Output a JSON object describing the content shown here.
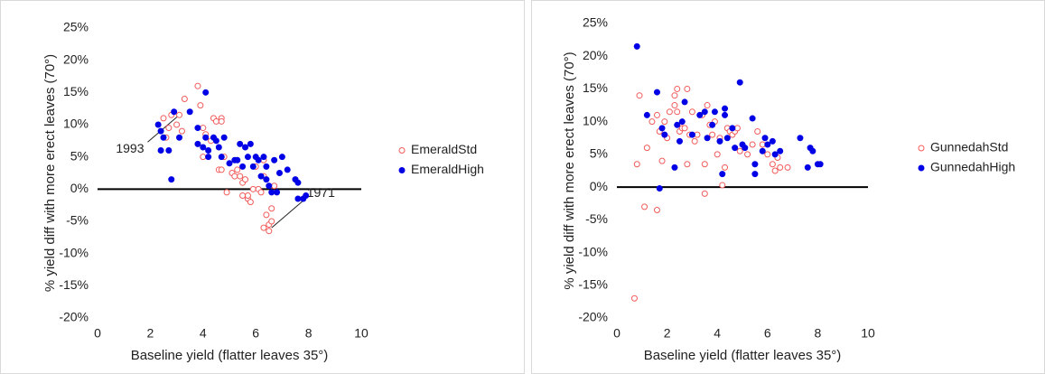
{
  "chart_data": [
    {
      "type": "scatter",
      "ylabel": "% yield diff with more erect leaves (70°)",
      "xlabel": "Baseline yield (flatter leaves 35°)",
      "xlim": [
        0,
        10
      ],
      "xticks": [
        0,
        2,
        4,
        6,
        8,
        10
      ],
      "ylim": [
        -20,
        25
      ],
      "yticks": [
        {
          "value": -20,
          "label": "-20%"
        },
        {
          "value": -15,
          "label": "-15%"
        },
        {
          "value": -10,
          "label": "-10%"
        },
        {
          "value": -5,
          "label": "-5%"
        },
        {
          "value": 0,
          "label": "0%"
        },
        {
          "value": 5,
          "label": "5%"
        },
        {
          "value": 10,
          "label": "10%"
        },
        {
          "value": 15,
          "label": "15%"
        },
        {
          "value": 20,
          "label": "20%"
        },
        {
          "value": 25,
          "label": "25%"
        }
      ],
      "legend": "right",
      "series": [
        {
          "name": "EmeraldStd",
          "color": "#f25b5b",
          "filled": false,
          "x": [
            2.5,
            2.6,
            2.7,
            2.8,
            3.0,
            3.2,
            3.3,
            3.1,
            3.8,
            3.9,
            4.0,
            4.1,
            4.0,
            4.3,
            4.4,
            4.5,
            4.7,
            4.7,
            4.6,
            4.7,
            4.8,
            4.9,
            5.1,
            5.2,
            5.3,
            5.4,
            5.5,
            5.5,
            5.6,
            5.7,
            5.8,
            5.7,
            5.9,
            6.1,
            6.2,
            6.3,
            6.0,
            6.3,
            6.4,
            6.5,
            6.6,
            6.5,
            6.6,
            6.7,
            6.3
          ],
          "values": [
            11,
            8,
            9.5,
            11.5,
            10,
            9,
            14,
            11.5,
            16,
            13,
            9.5,
            8.5,
            5,
            7.5,
            11,
            10.5,
            11,
            10.5,
            3,
            3,
            5,
            -0.5,
            2.5,
            2,
            3,
            2,
            1,
            -1,
            1.5,
            -1.5,
            -2,
            -1,
            0,
            0,
            -0.5,
            2,
            3.5,
            -6,
            -4,
            -5.5,
            -3,
            -6.5,
            -5,
            0.5,
            4.5
          ]
        },
        {
          "name": "EmeraldHigh",
          "color": "#0000e6",
          "filled": true,
          "x": [
            2.3,
            2.4,
            2.4,
            2.5,
            2.7,
            2.8,
            2.9,
            3.1,
            3.5,
            3.8,
            3.8,
            4.0,
            4.1,
            4.1,
            4.2,
            4.2,
            4.4,
            4.5,
            4.6,
            4.7,
            4.8,
            5.0,
            5.2,
            5.4,
            5.5,
            5.6,
            5.7,
            5.8,
            5.9,
            6.0,
            6.1,
            6.2,
            6.3,
            6.4,
            6.5,
            6.6,
            6.7,
            6.8,
            6.9,
            7.0,
            7.2,
            7.5,
            7.6,
            7.6,
            7.8,
            7.9,
            6.4,
            5.3
          ],
          "values": [
            10,
            9,
            6,
            8,
            6,
            1.5,
            12,
            8,
            12,
            9.5,
            7,
            6.5,
            15,
            8,
            6,
            5,
            8,
            7.5,
            6.5,
            5,
            8,
            4,
            4.5,
            7,
            3.5,
            6.5,
            5,
            7,
            3.5,
            5,
            4.5,
            2,
            5,
            3.5,
            0.5,
            -0.5,
            4.5,
            -0.5,
            2.5,
            5,
            3,
            1.5,
            1,
            -1.5,
            -1.5,
            -1,
            1.5,
            4.5
          ]
        }
      ],
      "annotations": [
        {
          "text": "1993",
          "x": 3.1,
          "y": 11.5
        },
        {
          "text": "1971",
          "x": 6.6,
          "y": -6
        }
      ]
    },
    {
      "type": "scatter",
      "ylabel": "% yield diff with more erect leaves (70°)",
      "xlabel": "Baseline yield (flatter leaves 35°)",
      "xlim": [
        0,
        10
      ],
      "xticks": [
        0,
        2,
        4,
        6,
        8,
        10
      ],
      "ylim": [
        -20,
        25
      ],
      "yticks": [
        {
          "value": -20,
          "label": "-20%"
        },
        {
          "value": -15,
          "label": "-15%"
        },
        {
          "value": -10,
          "label": "-10%"
        },
        {
          "value": -5,
          "label": "-5%"
        },
        {
          "value": 0,
          "label": "0%"
        },
        {
          "value": 5,
          "label": "5%"
        },
        {
          "value": 10,
          "label": "10%"
        },
        {
          "value": 15,
          "label": "15%"
        },
        {
          "value": 20,
          "label": "20%"
        },
        {
          "value": 25,
          "label": "25%"
        }
      ],
      "legend": "right",
      "series": [
        {
          "name": "GunnedahStd",
          "color": "#f25b5b",
          "filled": false,
          "x": [
            0.7,
            0.8,
            0.9,
            1.1,
            1.2,
            1.4,
            1.6,
            1.6,
            1.7,
            1.8,
            1.9,
            2.0,
            2.1,
            2.3,
            2.3,
            2.4,
            2.4,
            2.5,
            2.6,
            2.7,
            2.8,
            2.8,
            2.9,
            3.0,
            3.1,
            3.2,
            3.4,
            3.5,
            3.5,
            3.6,
            3.7,
            3.8,
            3.9,
            4.0,
            4.1,
            4.2,
            4.3,
            4.4,
            4.5,
            4.6,
            4.7,
            4.8,
            4.9,
            5.2,
            5.4,
            5.6,
            5.8,
            6.0,
            6.2,
            6.3,
            6.4,
            6.5,
            6.8
          ],
          "values": [
            -17,
            3.5,
            14,
            -3,
            6,
            10,
            -3.5,
            11,
            8.5,
            4,
            10,
            7.5,
            11.5,
            14,
            12.5,
            15,
            11.5,
            8.5,
            9,
            9,
            3.5,
            15,
            8,
            11.5,
            7,
            8,
            11,
            -1,
            3.5,
            12.5,
            9.5,
            8,
            10,
            5,
            7.5,
            0.3,
            3,
            9,
            8.5,
            8,
            8.5,
            9,
            5.5,
            5,
            6.5,
            8.5,
            6.5,
            5,
            3.5,
            2.5,
            4.5,
            3,
            3
          ]
        },
        {
          "name": "GunnedahHigh",
          "color": "#0000e6",
          "filled": true,
          "x": [
            0.8,
            1.2,
            1.6,
            1.8,
            1.7,
            1.9,
            2.3,
            2.4,
            2.5,
            2.6,
            2.7,
            3.0,
            3.3,
            3.5,
            3.6,
            3.8,
            3.9,
            4.1,
            4.2,
            4.3,
            4.3,
            4.4,
            4.6,
            4.7,
            4.9,
            5.0,
            5.1,
            5.4,
            5.5,
            5.5,
            5.8,
            5.9,
            6.0,
            6.2,
            6.3,
            6.5,
            7.3,
            7.6,
            7.7,
            7.8,
            8.0,
            8.1
          ],
          "values": [
            21.5,
            11,
            14.5,
            9,
            -0.2,
            8,
            3,
            9.5,
            7,
            10,
            13,
            8,
            11,
            11.5,
            7.5,
            9.5,
            11.5,
            7,
            2,
            12,
            11,
            7.5,
            9,
            6,
            16,
            6.5,
            6,
            10.5,
            3.5,
            2,
            5.5,
            7.5,
            6.5,
            7,
            5,
            5.5,
            7.5,
            3,
            6,
            5.5,
            3.5,
            3.5
          ]
        }
      ]
    }
  ]
}
